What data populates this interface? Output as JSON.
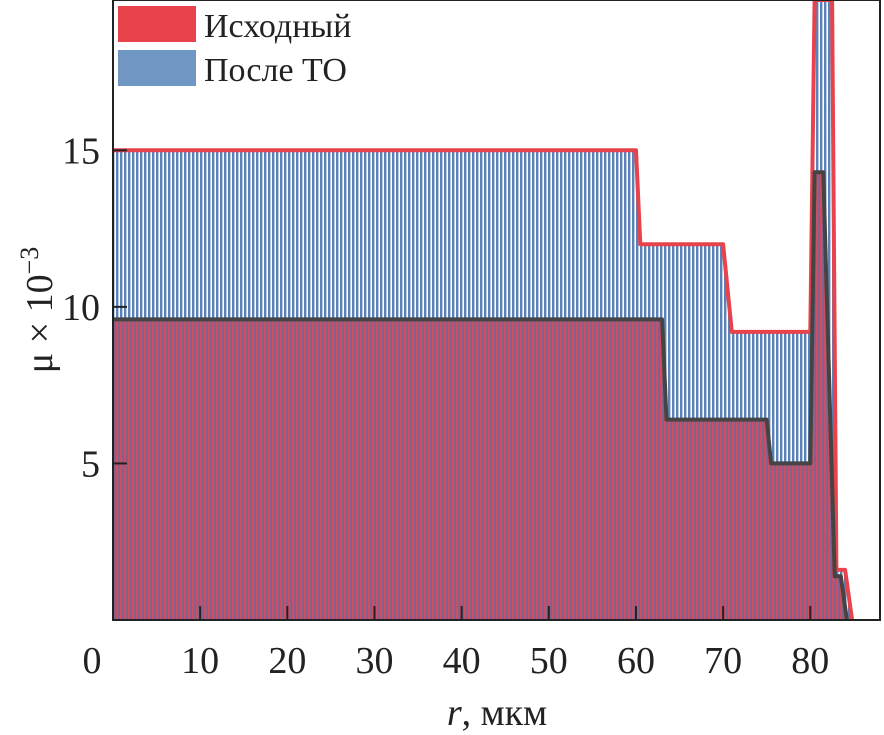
{
  "chart_data": {
    "type": "area",
    "xlabel_var": "r",
    "xlabel_unit": ", мкм",
    "ylabel": "μ × 10",
    "ylabel_exp": "−3",
    "xlim": [
      0,
      88
    ],
    "ylim": [
      0,
      19.8
    ],
    "x_ticks": [
      0,
      10,
      20,
      30,
      40,
      50,
      60,
      70,
      80
    ],
    "y_ticks": [
      5,
      10,
      15
    ],
    "grid": false,
    "legend_position": "top-left",
    "series": [
      {
        "name": "Исходный",
        "color": "#e8424a",
        "hatch_color": "#d94a5a",
        "points": [
          [
            0,
            15
          ],
          [
            60,
            15
          ],
          [
            60.5,
            12
          ],
          [
            70,
            12
          ],
          [
            71,
            9.2
          ],
          [
            80,
            9.2
          ],
          [
            80.5,
            19.8
          ],
          [
            82.5,
            19.8
          ],
          [
            83,
            1.6
          ],
          [
            84,
            1.6
          ],
          [
            84.8,
            0
          ]
        ]
      },
      {
        "name": "После ТО",
        "color": "#444444",
        "hatch_color": "#5a82b8",
        "points": [
          [
            0,
            9.6
          ],
          [
            63,
            9.6
          ],
          [
            63.5,
            6.4
          ],
          [
            75,
            6.4
          ],
          [
            75.5,
            5
          ],
          [
            80,
            5
          ],
          [
            80.5,
            14.3
          ],
          [
            81.5,
            14.3
          ],
          [
            82.8,
            1.4
          ],
          [
            83.5,
            1.4
          ],
          [
            84.2,
            0
          ]
        ]
      }
    ]
  }
}
